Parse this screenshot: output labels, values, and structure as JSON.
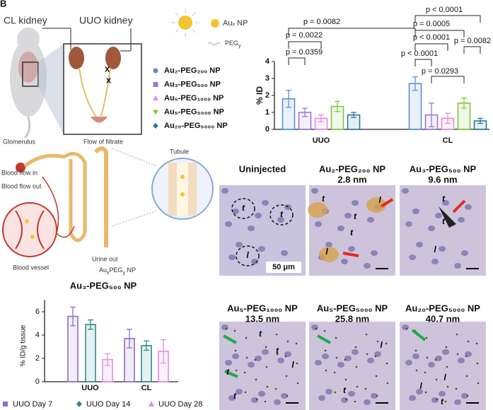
{
  "panel_label": "B",
  "illustration": {
    "cl_kidney": "CL kidney",
    "uuo_kidney": "UUO kidney",
    "np_label": "Auₓ NP",
    "peg_label": [
      "PEG",
      "y"
    ]
  },
  "nephron": {
    "glomerulus": "Glomerulus",
    "flow_of_filtrate": "Flow of filtrate",
    "blood_flow_in": "Blood flow in",
    "blood_flow_out": "Blood flow out",
    "tubule": "Tubule",
    "urine_out": "Urine out",
    "blood_vessel": "Blood vessel",
    "np_label": [
      "Au",
      "x",
      "PEG",
      "y",
      " NP"
    ]
  },
  "chart_data": [
    {
      "type": "bar",
      "y_label": "% ID",
      "categories": [
        "UUO",
        "CL"
      ],
      "series": [
        {
          "name": "Au₂-PEG₂₀₀ NP",
          "color": "#5b8fd6",
          "values": [
            1.8,
            2.7
          ],
          "errors": [
            0.5,
            0.4
          ]
        },
        {
          "name": "Au₃-PEG₅₀₀ NP",
          "color": "#9a79d0",
          "values": [
            1.0,
            0.85
          ],
          "errors": [
            0.25,
            0.7
          ]
        },
        {
          "name": "Au₅-PEG₁₀₀₀ NP",
          "color": "#e58ae0",
          "values": [
            0.65,
            0.65
          ],
          "errors": [
            0.2,
            0.3
          ]
        },
        {
          "name": "Au₅-PEG₅₀₀₀ NP",
          "color": "#84c441",
          "values": [
            1.35,
            1.55
          ],
          "errors": [
            0.3,
            0.3
          ]
        },
        {
          "name": "Au₂₀-PEG₅₀₀₀ NP",
          "color": "#2c7a99",
          "values": [
            0.85,
            0.5
          ],
          "errors": [
            0.15,
            0.15
          ]
        }
      ],
      "ylim": [
        0,
        4
      ],
      "yticks": [
        0,
        1,
        2,
        3,
        4
      ],
      "annotations": [
        "p = 0.0359",
        "p = 0.0022",
        "p = 0.0082",
        "p < 0.0001",
        "p = 0.0005",
        "p < 0.0001",
        "p < 0.0001",
        "p = 0.0293",
        "p = 0.0082"
      ]
    },
    {
      "type": "bar",
      "title": "Au₃-PEG₅₀₀ NP",
      "y_label": "% ID/g tissue",
      "categories": [
        "UUO",
        "CL"
      ],
      "series": [
        {
          "name": "UUO Day 7",
          "color": "#8e6cc7",
          "values": [
            5.6,
            3.7
          ],
          "errors": [
            0.8,
            0.8
          ]
        },
        {
          "name": "UUO Day 14",
          "color": "#2f8a8a",
          "values": [
            4.9,
            3.1
          ],
          "errors": [
            0.4,
            0.4
          ]
        },
        {
          "name": "UUO Day 28",
          "color": "#e18ee0",
          "values": [
            1.9,
            2.6
          ],
          "errors": [
            0.5,
            1.0
          ]
        }
      ],
      "ylim": [
        0,
        7
      ],
      "yticks": [
        0,
        2,
        4,
        6
      ]
    }
  ],
  "histology": [
    {
      "title": "Uninjected",
      "labels": [
        "t",
        "t",
        "l"
      ],
      "scale": "50 μm"
    },
    {
      "title": "Au₂-PEG₂₀₀ NP",
      "size": "2.8 nm",
      "labels": [
        "t",
        "l",
        "t",
        "t",
        "l"
      ]
    },
    {
      "title": "Au₃-PEG₅₀₀ NP",
      "size": "9.6 nm",
      "labels": [
        "t",
        "t",
        "l"
      ]
    },
    {
      "title": "Au₅-PEG₁₀₀₀ NP",
      "size": "13.5 nm",
      "labels": [
        "t",
        "t",
        "t",
        "t",
        "l"
      ]
    },
    {
      "title": "Au₅-PEG₅₀₀₀ NP",
      "size": "25.8 nm",
      "labels": [
        "l",
        "t"
      ]
    },
    {
      "title": "Au₂₀-PEG₅₀₀₀ NP",
      "size": "40.7 nm",
      "labels": [
        "l",
        "l",
        "t"
      ]
    }
  ]
}
